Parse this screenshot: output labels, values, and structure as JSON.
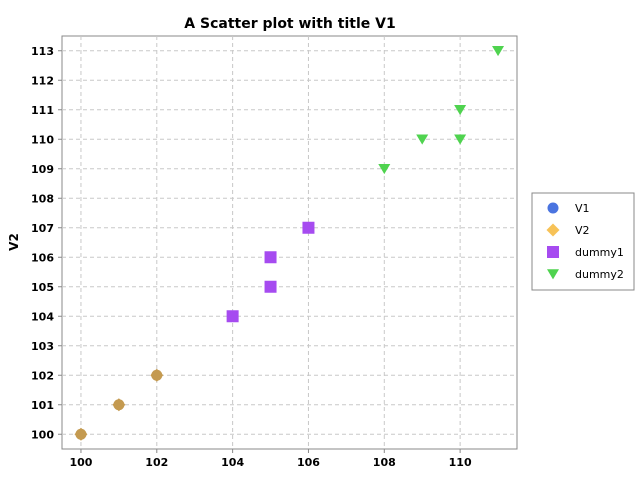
{
  "chart_data": {
    "type": "scatter",
    "title": "A Scatter plot with title V1",
    "xlabel": "",
    "ylabel": "V2",
    "xlim": [
      99.5,
      111.5
    ],
    "ylim": [
      99.5,
      113.5
    ],
    "x_ticks": [
      100,
      102,
      104,
      106,
      108,
      110
    ],
    "y_ticks": [
      100,
      101,
      102,
      103,
      104,
      105,
      106,
      107,
      108,
      109,
      110,
      111,
      112,
      113
    ],
    "grid": true,
    "legend_position": "right",
    "series": [
      {
        "name": "V1",
        "marker": "circle",
        "color": "#4a74e0",
        "points": [
          [
            100,
            100
          ],
          [
            101,
            101
          ],
          [
            102,
            102
          ]
        ]
      },
      {
        "name": "V2",
        "marker": "diamond",
        "color": "#f7c257",
        "points": [
          [
            100,
            100
          ],
          [
            101,
            101
          ],
          [
            102,
            102
          ]
        ]
      },
      {
        "name": "dummy1",
        "marker": "square",
        "color": "#a64bf0",
        "points": [
          [
            104,
            104
          ],
          [
            105,
            105
          ],
          [
            105,
            106
          ],
          [
            106,
            107
          ]
        ]
      },
      {
        "name": "dummy2",
        "marker": "triangle-down",
        "color": "#4fd34f",
        "points": [
          [
            108,
            109
          ],
          [
            109,
            110
          ],
          [
            110,
            110
          ],
          [
            110,
            111
          ],
          [
            111,
            113
          ]
        ]
      }
    ],
    "overlap_color": "#c49a50"
  }
}
